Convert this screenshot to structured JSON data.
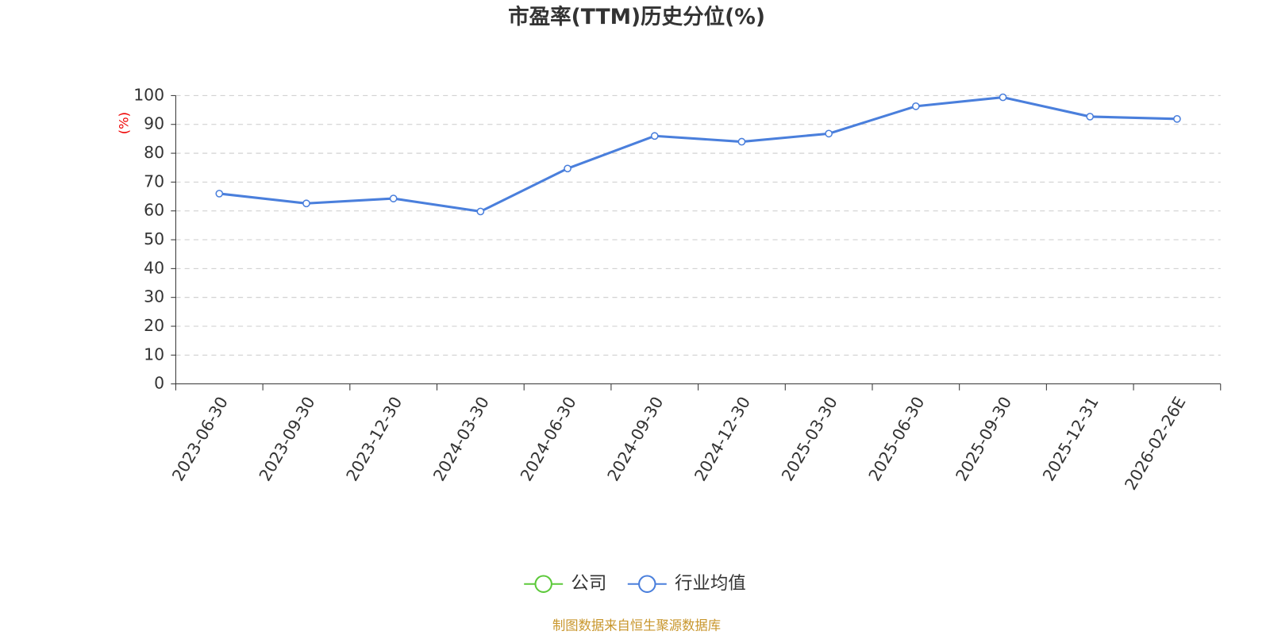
{
  "chart_data": {
    "type": "line",
    "title": "市盈率(TTM)历史分位(%)",
    "y_label": "(%)",
    "categories": [
      "2023-06-30",
      "2023-09-30",
      "2023-12-30",
      "2024-03-30",
      "2024-06-30",
      "2024-09-30",
      "2024-12-30",
      "2025-03-30",
      "2025-06-30",
      "2025-09-30",
      "2025-12-31",
      "2026-02-26E"
    ],
    "series": [
      {
        "name": "公司",
        "color": "#5cc93a",
        "values": [
          null,
          null,
          null,
          null,
          null,
          null,
          null,
          null,
          null,
          null,
          null,
          null
        ]
      },
      {
        "name": "行业均值",
        "color": "#4a7fdc",
        "values": [
          66.0,
          62.6,
          64.3,
          59.8,
          74.7,
          86.0,
          84.0,
          86.8,
          96.3,
          99.4,
          92.7,
          91.9
        ]
      }
    ],
    "ylim": [
      0,
      100
    ],
    "yticks": [
      0,
      10,
      20,
      30,
      40,
      50,
      60,
      70,
      80,
      90,
      100
    ],
    "grid": true,
    "legend": "bottom",
    "source": "制图数据来自恒生聚源数据库"
  }
}
